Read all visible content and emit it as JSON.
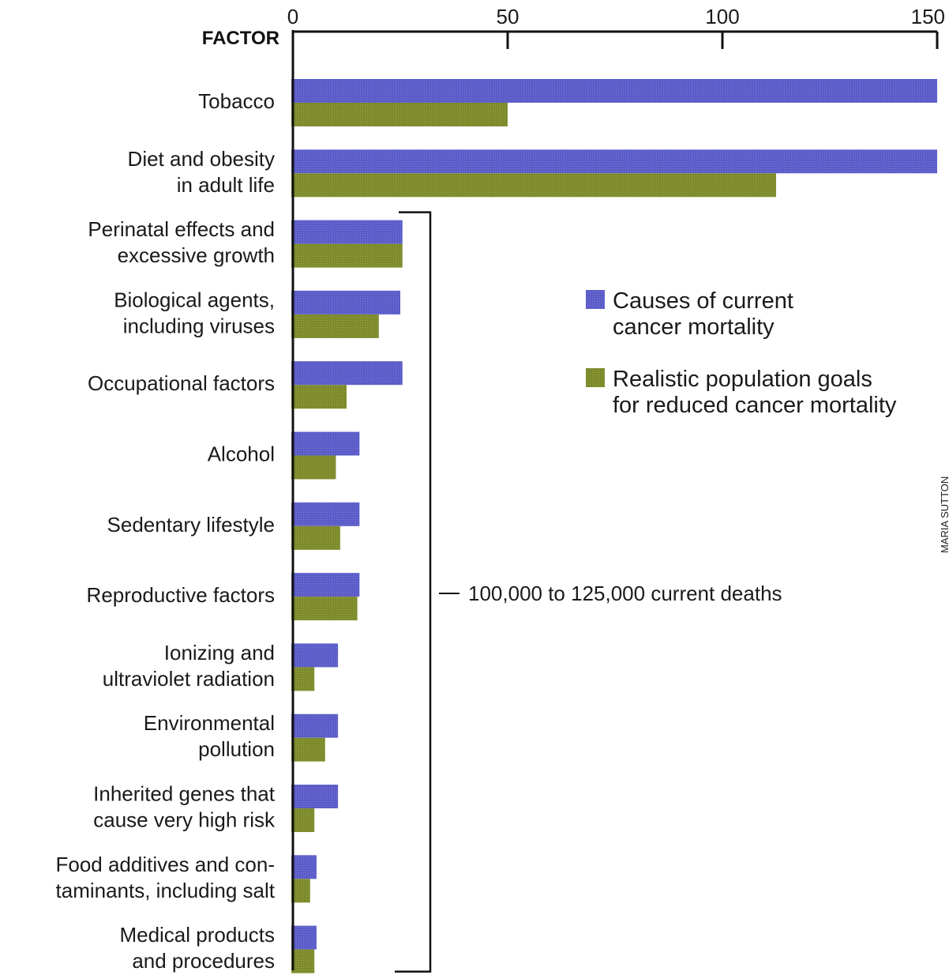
{
  "chart_data": {
    "type": "bar",
    "orientation": "horizontal",
    "category_header": "FACTOR",
    "categories": [
      [
        "Tobacco"
      ],
      [
        "Diet and obesity",
        "in adult life"
      ],
      [
        "Perinatal effects and",
        "excessive growth"
      ],
      [
        "Biological agents,",
        "including viruses"
      ],
      [
        "Occupational factors"
      ],
      [
        "Alcohol"
      ],
      [
        "Sedentary lifestyle"
      ],
      [
        "Reproductive factors"
      ],
      [
        "Ionizing and",
        "ultraviolet radiation"
      ],
      [
        "Environmental",
        "pollution"
      ],
      [
        "Inherited genes that",
        "cause very high risk"
      ],
      [
        "Food additives and con-",
        "taminants, including salt"
      ],
      [
        "Medical products",
        "and procedures"
      ]
    ],
    "series": [
      {
        "name": "Causes of current cancer mortality",
        "legend_lines": [
          "Causes of current",
          "cancer mortality"
        ],
        "color": "#5b5cc8",
        "values": [
          150,
          150,
          25.5,
          25,
          25.5,
          15.5,
          15.5,
          15.5,
          10.5,
          10.5,
          10.5,
          5.5,
          5.5
        ]
      },
      {
        "name": "Realistic population goals for reduced cancer mortality",
        "legend_lines": [
          "Realistic population goals",
          "for reduced cancer mortality"
        ],
        "color": "#7d8a2c",
        "values": [
          50,
          112.5,
          25.5,
          20,
          12.5,
          10,
          11,
          15,
          5,
          7.5,
          5,
          4,
          5
        ]
      }
    ],
    "x_ticks": [
      0,
      50,
      100,
      150
    ],
    "xlim": [
      0,
      150
    ],
    "annotation": "100,000 to 125,000 current deaths",
    "bracket_categories": [
      2,
      12
    ],
    "legend_position": "right-middle",
    "credit": "MARIA SUTTON"
  }
}
